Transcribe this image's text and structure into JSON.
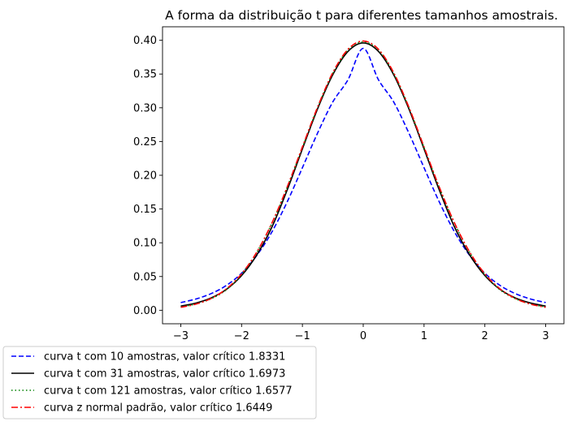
{
  "chart_data": {
    "type": "line",
    "title": "A forma da distribuição t para diferentes tamanhos amostrais.",
    "xlabel": "",
    "ylabel": "",
    "xlim": [
      -3.3,
      3.3
    ],
    "ylim": [
      -0.02,
      0.42
    ],
    "x_ticks": [
      -3,
      -2,
      -1,
      0,
      1,
      2,
      3
    ],
    "x_tick_labels": [
      "−3",
      "−2",
      "−1",
      "0",
      "1",
      "2",
      "3"
    ],
    "y_ticks": [
      0.0,
      0.05,
      0.1,
      0.15,
      0.2,
      0.25,
      0.3,
      0.35,
      0.4
    ],
    "y_tick_labels": [
      "0.00",
      "0.05",
      "0.10",
      "0.15",
      "0.20",
      "0.25",
      "0.30",
      "0.35",
      "0.40"
    ],
    "grid": false,
    "legend_position": "lower-left, outside plot area",
    "x": [
      -3.0,
      -2.75,
      -2.5,
      -2.25,
      -2.0,
      -1.75,
      -1.5,
      -1.25,
      -1.0,
      -0.75,
      -0.5,
      -0.25,
      0.0,
      0.25,
      0.5,
      0.75,
      1.0,
      1.25,
      1.5,
      1.75,
      2.0,
      2.25,
      2.5,
      2.75,
      3.0
    ],
    "series": [
      {
        "name": "curva t com 10 amostras, valor crítico 1.8331",
        "color": "#0000ff",
        "dash": "dashed",
        "values": [
          0.0114,
          0.0167,
          0.0247,
          0.0368,
          0.0549,
          0.0812,
          0.1163,
          0.1606,
          0.2112,
          0.2626,
          0.3087,
          0.3416,
          0.388,
          0.3416,
          0.3087,
          0.2626,
          0.2112,
          0.1606,
          0.1163,
          0.0812,
          0.0549,
          0.0368,
          0.0247,
          0.0167,
          0.0114
        ]
      },
      {
        "name": "curva t com 31 amostras, valor crítico 1.6973",
        "color": "#000000",
        "dash": "solid",
        "values": [
          0.0062,
          0.0107,
          0.0183,
          0.0309,
          0.0514,
          0.082,
          0.1235,
          0.1782,
          0.239,
          0.2985,
          0.349,
          0.3835,
          0.396,
          0.3835,
          0.349,
          0.2985,
          0.239,
          0.1782,
          0.1235,
          0.082,
          0.0514,
          0.0309,
          0.0183,
          0.0107,
          0.0062
        ]
      },
      {
        "name": "curva t com 121 amostras, valor crítico 1.6577",
        "color": "#008000",
        "dash": "dotted",
        "values": [
          0.0049,
          0.0093,
          0.0171,
          0.0303,
          0.053,
          0.0858,
          0.129,
          0.1821,
          0.2414,
          0.3003,
          0.3508,
          0.3855,
          0.3974,
          0.3855,
          0.3508,
          0.3003,
          0.2414,
          0.1821,
          0.129,
          0.0858,
          0.053,
          0.0303,
          0.0171,
          0.0093,
          0.0049
        ]
      },
      {
        "name": "curva z normal padrão, valor crítico 1.6449",
        "color": "#ff0000",
        "dash": "dashdot",
        "values": [
          0.0044,
          0.0091,
          0.0175,
          0.0317,
          0.054,
          0.0863,
          0.1295,
          0.1826,
          0.242,
          0.3011,
          0.3521,
          0.3867,
          0.3989,
          0.3867,
          0.3521,
          0.3011,
          0.242,
          0.1826,
          0.1295,
          0.0863,
          0.054,
          0.0317,
          0.0175,
          0.0091,
          0.0044
        ]
      }
    ]
  }
}
